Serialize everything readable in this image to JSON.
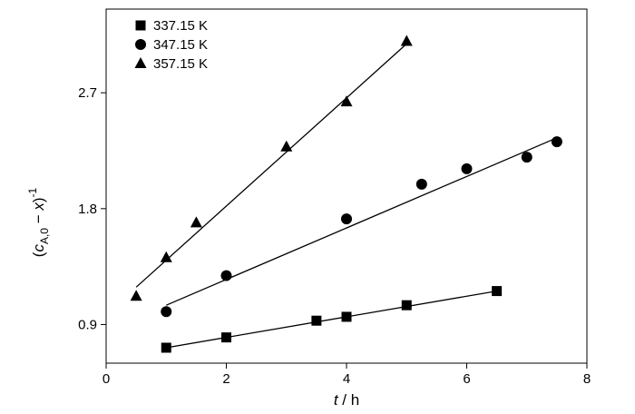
{
  "chart_data": {
    "type": "scatter",
    "xlabel": "t / h",
    "ylabel": "(cA,0 − x)^-1",
    "xlabel_parts": {
      "var": "t",
      "rest": " / h"
    },
    "ylabel_parts": {
      "open": "(",
      "c": "c",
      "sub": "A,0",
      "minus": " − ",
      "x": "x",
      "close": ")",
      "sup": "-1"
    },
    "xlim": [
      0,
      8
    ],
    "ylim": [
      0.6,
      3.35
    ],
    "xticks": [
      0,
      2,
      4,
      6,
      8
    ],
    "xtick_labels": [
      "0",
      "2",
      "4",
      "6",
      "8"
    ],
    "yticks": [
      0.9,
      1.8,
      2.7
    ],
    "ytick_labels": [
      "0.9",
      "1.8",
      "2.7"
    ],
    "grid": false,
    "legend_position": "top-left",
    "series": [
      {
        "name": "337.15 K",
        "marker": "square",
        "points": [
          [
            1,
            0.72
          ],
          [
            2,
            0.8
          ],
          [
            3.5,
            0.93
          ],
          [
            4,
            0.96
          ],
          [
            5,
            1.05
          ],
          [
            6.5,
            1.16
          ]
        ],
        "fit": [
          [
            1,
            0.72
          ],
          [
            6.5,
            1.16
          ]
        ]
      },
      {
        "name": "347.15 K",
        "marker": "circle",
        "points": [
          [
            1,
            1.0
          ],
          [
            2,
            1.28
          ],
          [
            4,
            1.72
          ],
          [
            5.25,
            1.99
          ],
          [
            6,
            2.11
          ],
          [
            7,
            2.2
          ],
          [
            7.5,
            2.32
          ]
        ],
        "fit": [
          [
            1,
            1.05
          ],
          [
            7.5,
            2.35
          ]
        ]
      },
      {
        "name": "357.15 K",
        "marker": "triangle",
        "points": [
          [
            0.5,
            1.12
          ],
          [
            1,
            1.42
          ],
          [
            1.5,
            1.69
          ],
          [
            3,
            2.28
          ],
          [
            4,
            2.63
          ],
          [
            5,
            3.1
          ]
        ],
        "fit": [
          [
            0.5,
            1.19
          ],
          [
            5,
            3.08
          ]
        ]
      }
    ]
  }
}
